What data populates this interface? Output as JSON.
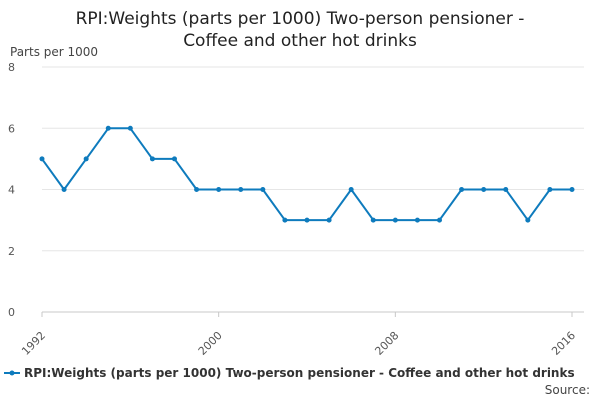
{
  "chart_data": {
    "type": "line",
    "title_lines": [
      "RPI:Weights (parts per 1000) Two-person pensioner -",
      "Coffee and other hot drinks"
    ],
    "ylabel": "Parts per 1000",
    "xlabel": "",
    "ylim": [
      0,
      8
    ],
    "yticks": [
      "0",
      "2",
      "4",
      "6",
      "8"
    ],
    "xlim": [
      1992,
      2016
    ],
    "xticks": [
      "1992",
      "2000",
      "2008",
      "2016"
    ],
    "grid": "horizontal",
    "legend_position": "bottom",
    "color": "#0e7bbd",
    "series": [
      {
        "name": "RPI:Weights (parts per 1000) Two-person pensioner - Coffee and other hot drinks",
        "x": [
          1992,
          1993,
          1994,
          1995,
          1996,
          1997,
          1998,
          1999,
          2000,
          2001,
          2002,
          2003,
          2004,
          2005,
          2006,
          2007,
          2008,
          2009,
          2010,
          2011,
          2012,
          2013,
          2014,
          2015,
          2016
        ],
        "values": [
          5,
          4,
          5,
          6,
          6,
          5,
          5,
          4,
          4,
          4,
          4,
          3,
          3,
          3,
          4,
          3,
          3,
          3,
          3,
          4,
          4,
          4,
          3,
          4,
          4
        ]
      }
    ],
    "source_label": "Source:"
  }
}
